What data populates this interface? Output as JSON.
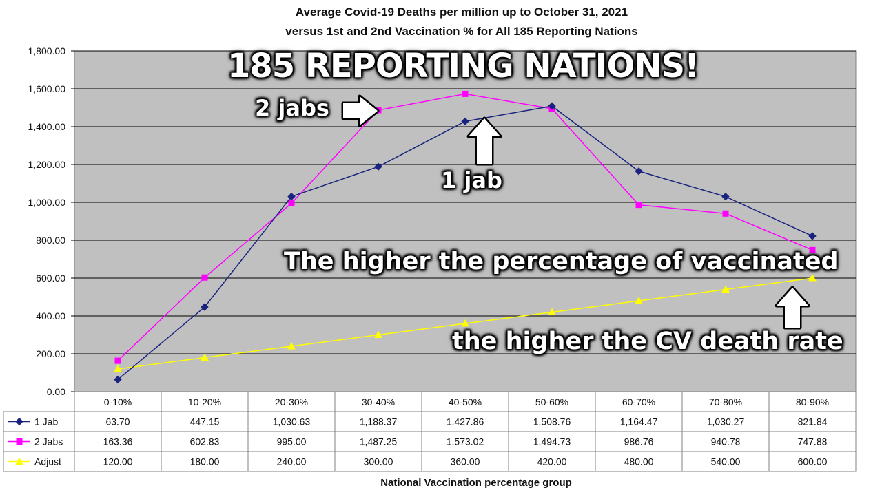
{
  "chart_data": {
    "type": "line",
    "title": "Average Covid-19 Deaths per million up to October 31, 2021",
    "subtitle": "versus 1st and 2nd Vaccination % for All 185 Reporting Nations",
    "xlabel": "National Vaccination percentage group",
    "ylabel": "",
    "ylim": [
      0,
      1800
    ],
    "yticks": [
      "0.00",
      "200.00",
      "400.00",
      "600.00",
      "800.00",
      "1,000.00",
      "1,200.00",
      "1,400.00",
      "1,600.00",
      "1,800.00"
    ],
    "categories": [
      "0-10%",
      "10-20%",
      "20-30%",
      "30-40%",
      "40-50%",
      "50-60%",
      "60-70%",
      "70-80%",
      "80-90%"
    ],
    "series": [
      {
        "name": "1 Jab",
        "color": "#1a237e",
        "marker": "diamond",
        "values": [
          63.7,
          447.15,
          1030.63,
          1188.37,
          1427.86,
          1508.76,
          1164.47,
          1030.27,
          821.84
        ],
        "labels": [
          "63.70",
          "447.15",
          "1,030.63",
          "1,188.37",
          "1,427.86",
          "1,508.76",
          "1,164.47",
          "1,030.27",
          "821.84"
        ]
      },
      {
        "name": "2 Jabs",
        "color": "#ff00ff",
        "marker": "square",
        "values": [
          163.36,
          602.83,
          995.0,
          1487.25,
          1573.02,
          1494.73,
          986.76,
          940.78,
          747.88
        ],
        "labels": [
          "163.36",
          "602.83",
          "995.00",
          "1,487.25",
          "1,573.02",
          "1,494.73",
          "986.76",
          "940.78",
          "747.88"
        ]
      },
      {
        "name": "Adjust",
        "color": "#ffff00",
        "marker": "triangle",
        "values": [
          120,
          180,
          240,
          300,
          360,
          420,
          480,
          540,
          600
        ],
        "labels": [
          "120.00",
          "180.00",
          "240.00",
          "300.00",
          "360.00",
          "420.00",
          "480.00",
          "540.00",
          "600.00"
        ]
      }
    ],
    "grid": true,
    "legend": "data-table-left",
    "plot_background": "#c0c0c0"
  },
  "annotations": {
    "headline": "185 REPORTING NATIONS!",
    "two_jabs": "2 jabs",
    "one_jab": "1 jab",
    "claim_line1": "The higher the percentage of vaccinated",
    "claim_line2": "the higher the CV death rate"
  }
}
